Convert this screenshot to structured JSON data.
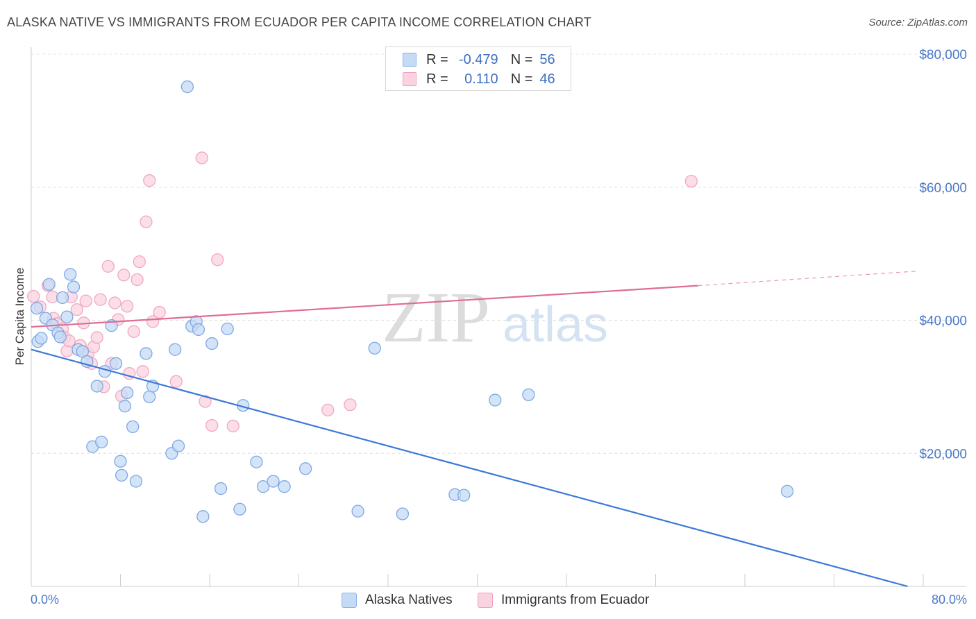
{
  "title": "ALASKA NATIVE VS IMMIGRANTS FROM ECUADOR PER CAPITA INCOME CORRELATION CHART",
  "source": "Source: ZipAtlas.com",
  "watermark": {
    "zip": "ZIP",
    "atlas": "atlas"
  },
  "legend": {
    "r_label": "R =",
    "n_label": "N =",
    "rows": [
      {
        "r": "-0.479",
        "n": "56",
        "color": "#8ab4e8",
        "fill": "#c5dbf5"
      },
      {
        "r": "0.110",
        "n": "46",
        "color": "#f0a0bc",
        "fill": "#fbd3e0"
      }
    ]
  },
  "bottom_legend": [
    "Alaska Natives",
    "Immigrants from Ecuador"
  ],
  "chart_data": {
    "type": "scatter",
    "title": "ALASKA NATIVE VS IMMIGRANTS FROM ECUADOR PER CAPITA INCOME CORRELATION CHART",
    "xlabel": "",
    "ylabel": "Per Capita Income",
    "xlim": [
      0,
      80
    ],
    "ylim": [
      0,
      80000
    ],
    "x_tick_labels": [
      "0.0%",
      "80.0%"
    ],
    "y_ticks": [
      20000,
      40000,
      60000,
      80000
    ],
    "y_tick_labels": [
      "$20,000",
      "$40,000",
      "$60,000",
      "$80,000"
    ],
    "grid": true,
    "legend_position": "top-center",
    "series": [
      {
        "name": "Alaska Natives",
        "color": "#3c78d8",
        "fill": "#c5dbf5",
        "stroke": "#7ea8e2",
        "points": [
          [
            0.5,
            41800
          ],
          [
            0.6,
            36800
          ],
          [
            0.9,
            37300
          ],
          [
            1.3,
            40300
          ],
          [
            1.6,
            45400
          ],
          [
            1.9,
            39300
          ],
          [
            2.4,
            38100
          ],
          [
            2.6,
            37500
          ],
          [
            2.8,
            43400
          ],
          [
            3.2,
            40500
          ],
          [
            3.5,
            46900
          ],
          [
            3.8,
            45000
          ],
          [
            4.2,
            35600
          ],
          [
            4.6,
            35300
          ],
          [
            5.0,
            33800
          ],
          [
            5.5,
            21000
          ],
          [
            5.9,
            30100
          ],
          [
            6.3,
            21700
          ],
          [
            6.6,
            32300
          ],
          [
            7.2,
            39200
          ],
          [
            7.6,
            33500
          ],
          [
            8.0,
            18800
          ],
          [
            8.1,
            16700
          ],
          [
            8.4,
            27100
          ],
          [
            8.6,
            29100
          ],
          [
            9.1,
            24000
          ],
          [
            9.4,
            15800
          ],
          [
            10.3,
            35000
          ],
          [
            10.6,
            28500
          ],
          [
            10.9,
            30100
          ],
          [
            12.6,
            20000
          ],
          [
            12.9,
            35600
          ],
          [
            13.2,
            21100
          ],
          [
            14.0,
            75100
          ],
          [
            14.4,
            39100
          ],
          [
            14.8,
            39800
          ],
          [
            15.0,
            38600
          ],
          [
            15.4,
            10500
          ],
          [
            16.2,
            36500
          ],
          [
            17.0,
            14700
          ],
          [
            17.6,
            38700
          ],
          [
            18.7,
            11600
          ],
          [
            19.0,
            27200
          ],
          [
            20.2,
            18700
          ],
          [
            20.8,
            15000
          ],
          [
            21.7,
            15800
          ],
          [
            22.7,
            15000
          ],
          [
            24.6,
            17700
          ],
          [
            29.3,
            11300
          ],
          [
            30.8,
            35800
          ],
          [
            33.3,
            10900
          ],
          [
            38.0,
            13800
          ],
          [
            38.8,
            13700
          ],
          [
            41.6,
            28000
          ],
          [
            44.6,
            28800
          ],
          [
            67.8,
            14300
          ]
        ]
      },
      {
        "name": "Immigrants from Ecuador",
        "color": "#e06c96",
        "fill": "#fbd3e0",
        "stroke": "#f0a8c0",
        "points": [
          [
            0.2,
            43600
          ],
          [
            0.8,
            42000
          ],
          [
            1.5,
            45200
          ],
          [
            1.9,
            43500
          ],
          [
            2.0,
            40300
          ],
          [
            2.3,
            39500
          ],
          [
            2.8,
            38700
          ],
          [
            3.0,
            37400
          ],
          [
            3.2,
            35400
          ],
          [
            3.4,
            36900
          ],
          [
            3.6,
            43500
          ],
          [
            4.1,
            41600
          ],
          [
            4.4,
            36200
          ],
          [
            4.7,
            39600
          ],
          [
            4.9,
            42900
          ],
          [
            5.1,
            35000
          ],
          [
            5.4,
            33500
          ],
          [
            5.6,
            36000
          ],
          [
            5.9,
            37400
          ],
          [
            6.2,
            43100
          ],
          [
            6.5,
            30000
          ],
          [
            6.9,
            48100
          ],
          [
            7.2,
            33500
          ],
          [
            7.5,
            42600
          ],
          [
            7.8,
            40100
          ],
          [
            8.1,
            28600
          ],
          [
            8.3,
            46800
          ],
          [
            8.6,
            42100
          ],
          [
            8.8,
            32000
          ],
          [
            9.2,
            38300
          ],
          [
            9.5,
            46100
          ],
          [
            9.7,
            48800
          ],
          [
            10.0,
            32300
          ],
          [
            10.3,
            54800
          ],
          [
            10.6,
            61000
          ],
          [
            10.9,
            39800
          ],
          [
            11.5,
            41200
          ],
          [
            13.0,
            30800
          ],
          [
            15.3,
            64400
          ],
          [
            15.6,
            27800
          ],
          [
            16.2,
            24200
          ],
          [
            16.7,
            49100
          ],
          [
            18.1,
            24100
          ],
          [
            26.6,
            26500
          ],
          [
            28.6,
            27300
          ],
          [
            59.2,
            60900
          ]
        ]
      }
    ],
    "trendlines": [
      {
        "series": "Alaska Natives",
        "x": [
          0,
          78.6
        ],
        "y": [
          35600,
          0
        ]
      },
      {
        "series": "Immigrants from Ecuador",
        "x": [
          0,
          59.8
        ],
        "y": [
          39000,
          45200
        ],
        "dashed_to": [
          79.6,
          47400
        ]
      }
    ]
  }
}
